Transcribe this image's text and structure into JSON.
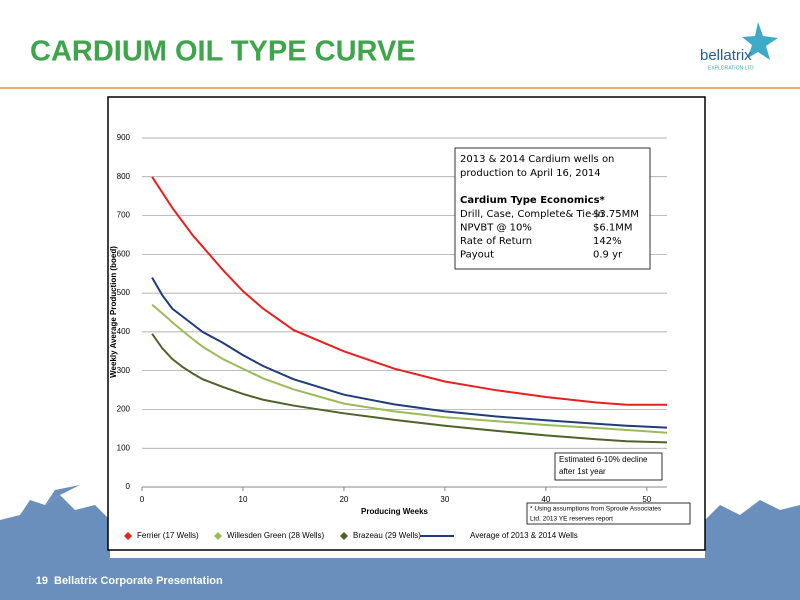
{
  "slide_title": "CARDIUM OIL TYPE CURVE",
  "logo": {
    "name": "bellatrix",
    "tagline": "EXPLORATION LTD"
  },
  "footer": {
    "page": "19",
    "text": "Bellatrix Corporate Presentation"
  },
  "chart_data": {
    "type": "line",
    "x_label": "Producing Weeks",
    "y_label": "Weekly Average Production (boed)",
    "x": [
      1,
      2,
      3,
      4,
      5,
      6,
      8,
      10,
      12,
      15,
      20,
      25,
      30,
      35,
      40,
      45,
      48,
      52
    ],
    "series": [
      {
        "name": "Ferrier (17 Wells)",
        "color": "#e8201f",
        "marker": "diamond",
        "values": [
          800,
          760,
          720,
          685,
          650,
          620,
          560,
          505,
          460,
          405,
          350,
          305,
          272,
          250,
          232,
          218,
          212,
          212
        ]
      },
      {
        "name": "Willesden Green (28 Wells)",
        "color": "#9bbb59",
        "marker": "diamond",
        "values": [
          470,
          448,
          425,
          403,
          382,
          362,
          330,
          305,
          280,
          252,
          215,
          195,
          180,
          170,
          160,
          152,
          147,
          140
        ]
      },
      {
        "name": "Brazeau (29 Wells)",
        "color": "#4f6228",
        "marker": "diamond",
        "values": [
          395,
          358,
          330,
          310,
          293,
          278,
          258,
          240,
          225,
          210,
          190,
          173,
          158,
          145,
          133,
          123,
          118,
          115
        ]
      },
      {
        "name": "Average of 2013 & 2014 Wells",
        "color": "#1f3d7a",
        "marker": "line",
        "values": [
          540,
          495,
          460,
          440,
          420,
          400,
          372,
          340,
          312,
          278,
          238,
          213,
          195,
          182,
          172,
          163,
          158,
          153
        ]
      }
    ],
    "xlim": [
      0,
      52
    ],
    "xticks": [
      0,
      10,
      20,
      30,
      40,
      50
    ],
    "ylim": [
      0,
      900
    ],
    "yticks": [
      0,
      100,
      200,
      300,
      400,
      500,
      600,
      700,
      800,
      900
    ],
    "grid": true,
    "info_box": {
      "header": [
        "2013 & 2014 Cardium wells on",
        "production to April 16, 2014"
      ],
      "economics_title": "Cardium Type Economics*",
      "rows": [
        [
          "Drill, Case, Complete& Tie-in",
          "$3.75MM"
        ],
        [
          "NPVBT @ 10%",
          "$6.1MM"
        ],
        [
          "Rate of Return",
          "142%"
        ],
        [
          "Payout",
          "0.9 yr"
        ]
      ]
    },
    "decline_note": [
      "Estimated 6-10% decline",
      "after 1st year"
    ],
    "footnote": [
      "* Using assumptions from Sproule Associates",
      "Ltd. 2013 YE reserves report"
    ]
  }
}
